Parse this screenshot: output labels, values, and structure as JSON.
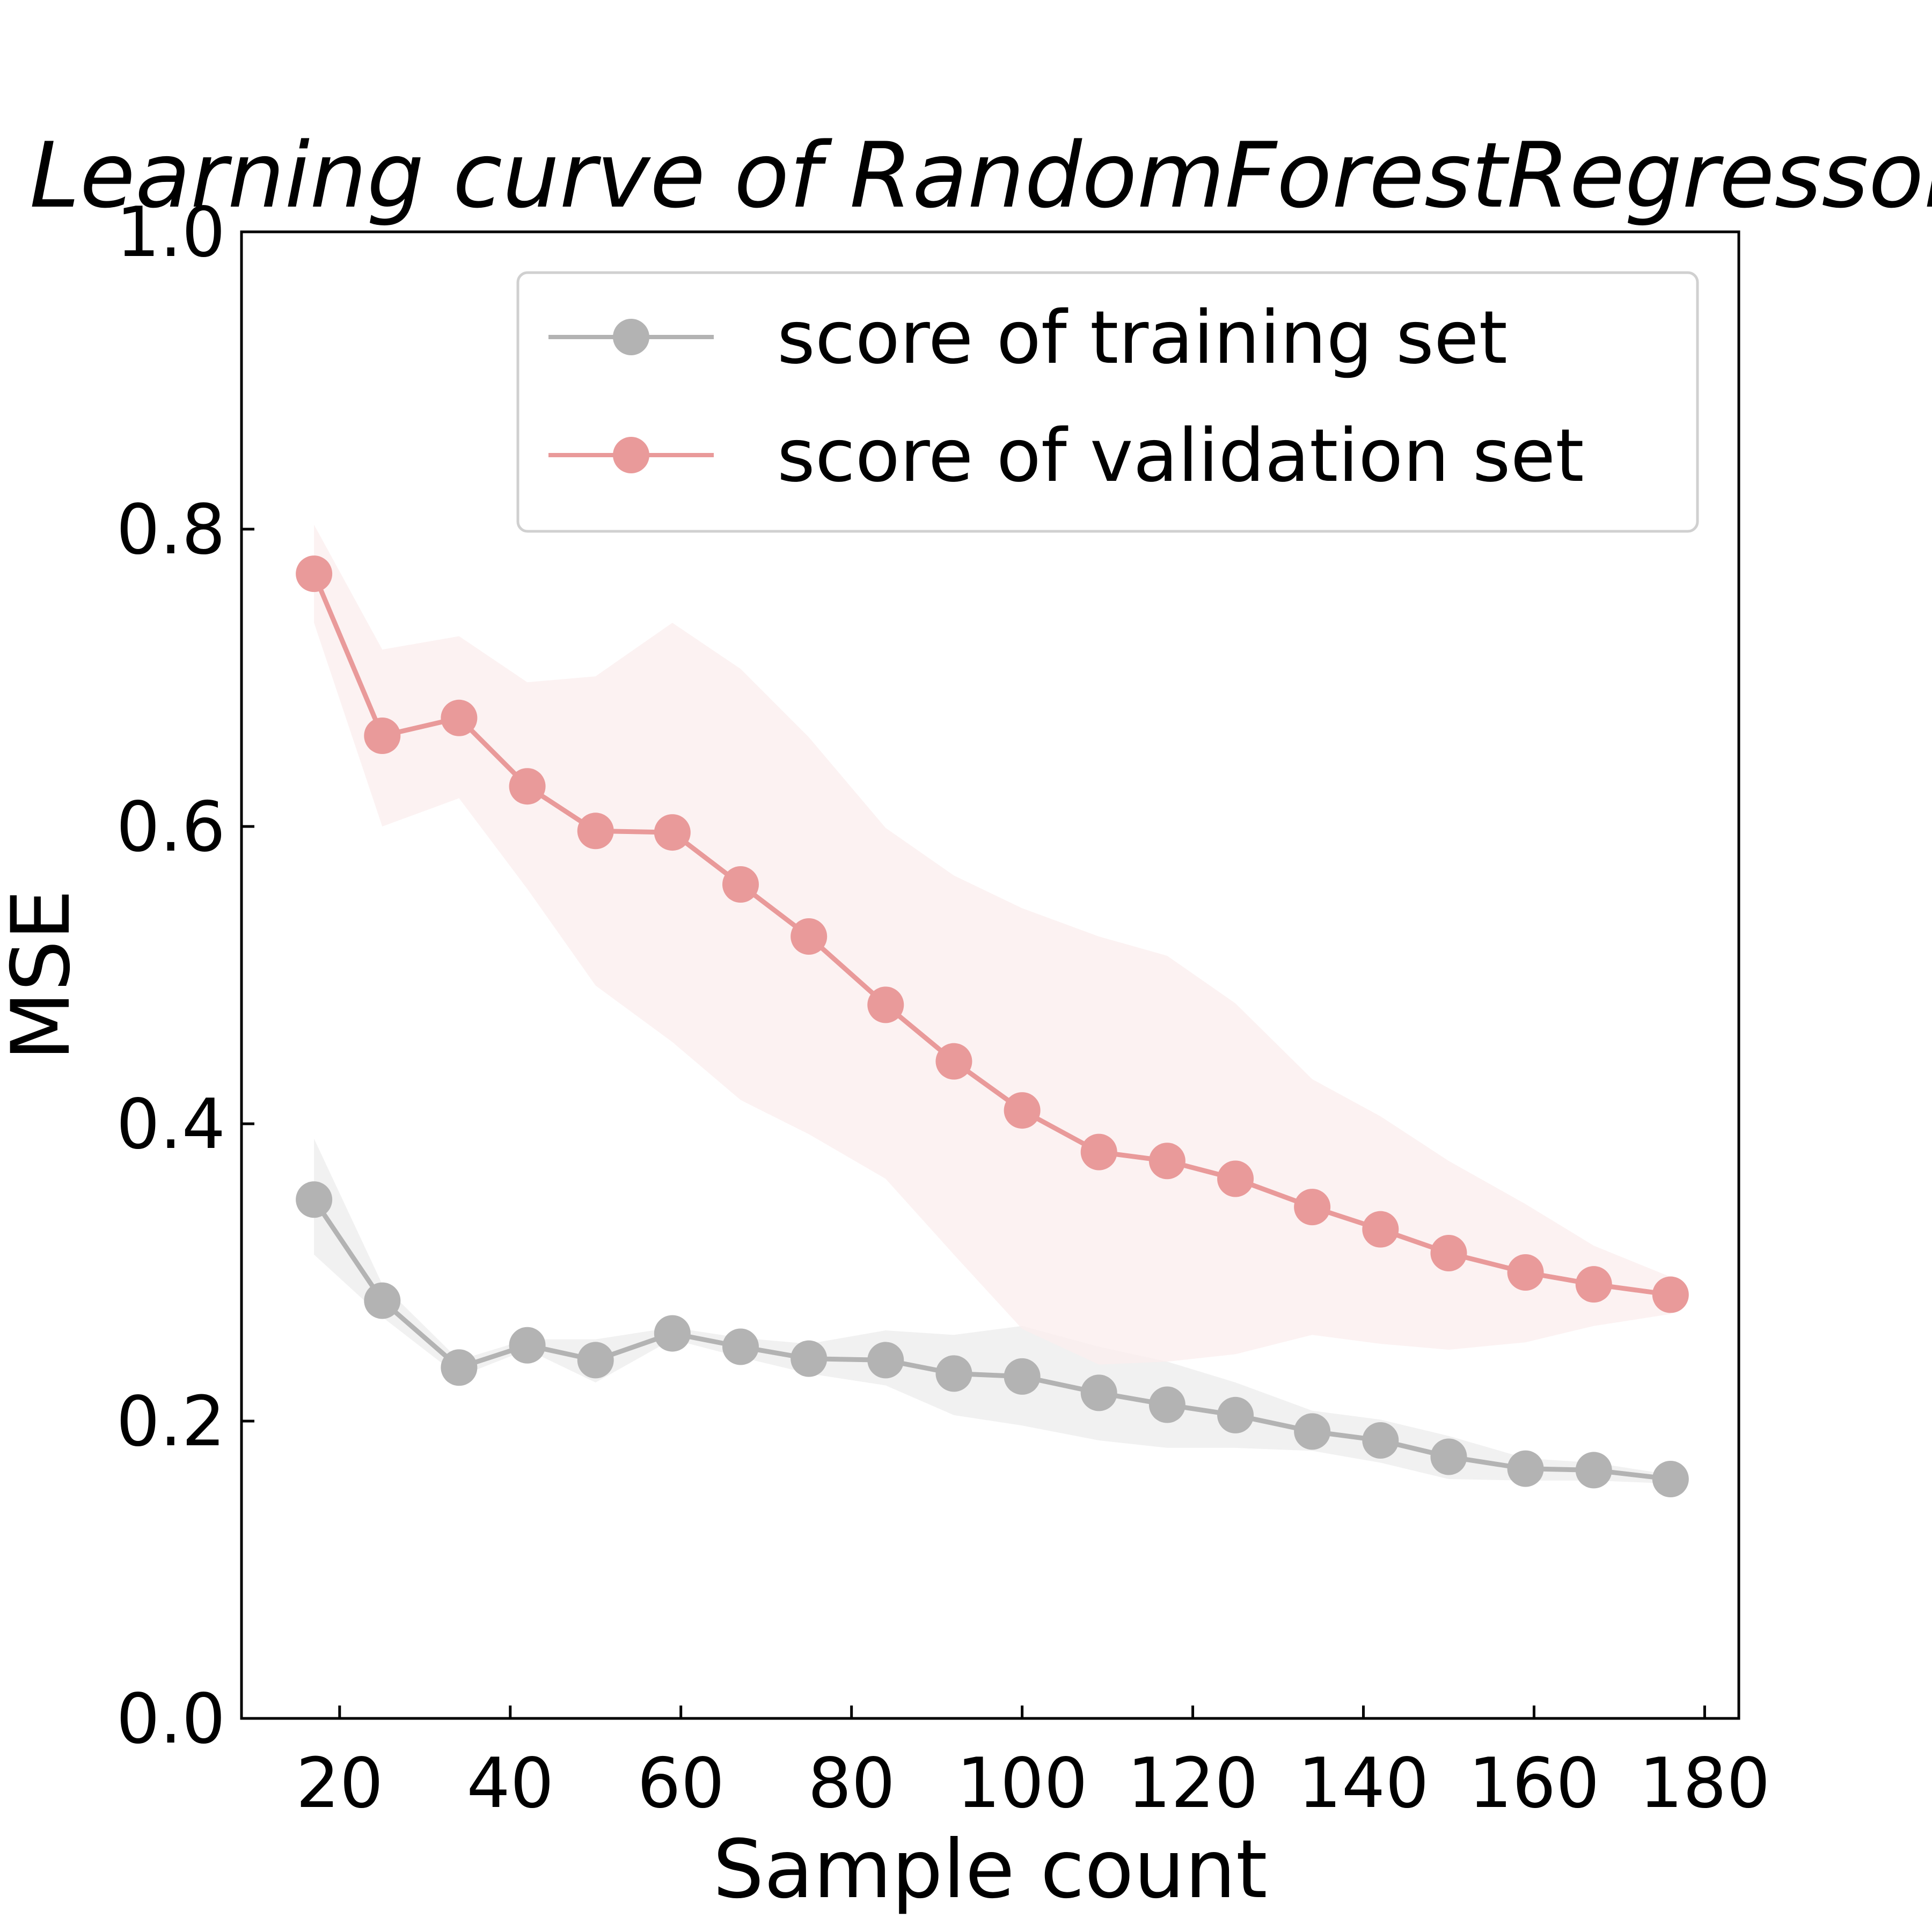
{
  "chart_data": {
    "type": "line",
    "title": "Learning curve of RandomForestRegressor",
    "xlabel": "Sample count",
    "ylabel": "MSE",
    "xlim": [
      8.5,
      184
    ],
    "ylim": [
      0,
      1.0
    ],
    "xticks": [
      20,
      40,
      60,
      80,
      100,
      120,
      140,
      160,
      180
    ],
    "xtick_labels": [
      "20",
      "40",
      "60",
      "80",
      "100",
      "120",
      "140",
      "160",
      "180"
    ],
    "yticks": [
      0.0,
      0.2,
      0.4,
      0.6,
      0.8,
      1.0
    ],
    "ytick_labels": [
      "0.0",
      "0.2",
      "0.4",
      "0.6",
      "0.8",
      "1.0"
    ],
    "grid": false,
    "legend_position": "top-right",
    "x": [
      17,
      25,
      34,
      42,
      50,
      59,
      67,
      75,
      84,
      92,
      100,
      109,
      117,
      125,
      134,
      142,
      150,
      159,
      167,
      176
    ],
    "series": [
      {
        "name": "score of training set",
        "color": "#b3b3b3",
        "band_color": "#ececec",
        "values": [
          0.349,
          0.281,
          0.236,
          0.251,
          0.241,
          0.259,
          0.25,
          0.242,
          0.241,
          0.232,
          0.23,
          0.219,
          0.211,
          0.204,
          0.193,
          0.187,
          0.176,
          0.168,
          0.167,
          0.161
        ],
        "lower": [
          0.312,
          0.27,
          0.23,
          0.248,
          0.226,
          0.255,
          0.243,
          0.232,
          0.224,
          0.204,
          0.197,
          0.187,
          0.182,
          0.182,
          0.18,
          0.172,
          0.161,
          0.16,
          0.16,
          0.158
        ],
        "upper": [
          0.39,
          0.292,
          0.241,
          0.255,
          0.255,
          0.263,
          0.256,
          0.252,
          0.261,
          0.258,
          0.264,
          0.25,
          0.24,
          0.226,
          0.207,
          0.201,
          0.19,
          0.175,
          0.172,
          0.164
        ]
      },
      {
        "name": "score of validation set",
        "color": "#e99a9a",
        "band_color": "#fbeeee",
        "values": [
          0.77,
          0.661,
          0.673,
          0.627,
          0.597,
          0.596,
          0.561,
          0.526,
          0.48,
          0.442,
          0.409,
          0.381,
          0.375,
          0.363,
          0.344,
          0.329,
          0.313,
          0.3,
          0.292,
          0.285
        ],
        "lower": [
          0.737,
          0.6,
          0.619,
          0.558,
          0.493,
          0.455,
          0.416,
          0.393,
          0.363,
          0.312,
          0.262,
          0.238,
          0.24,
          0.245,
          0.258,
          0.252,
          0.248,
          0.253,
          0.264,
          0.272
        ],
        "upper": [
          0.803,
          0.719,
          0.728,
          0.697,
          0.701,
          0.737,
          0.706,
          0.66,
          0.599,
          0.567,
          0.545,
          0.526,
          0.513,
          0.481,
          0.43,
          0.405,
          0.375,
          0.346,
          0.318,
          0.297
        ]
      }
    ]
  }
}
